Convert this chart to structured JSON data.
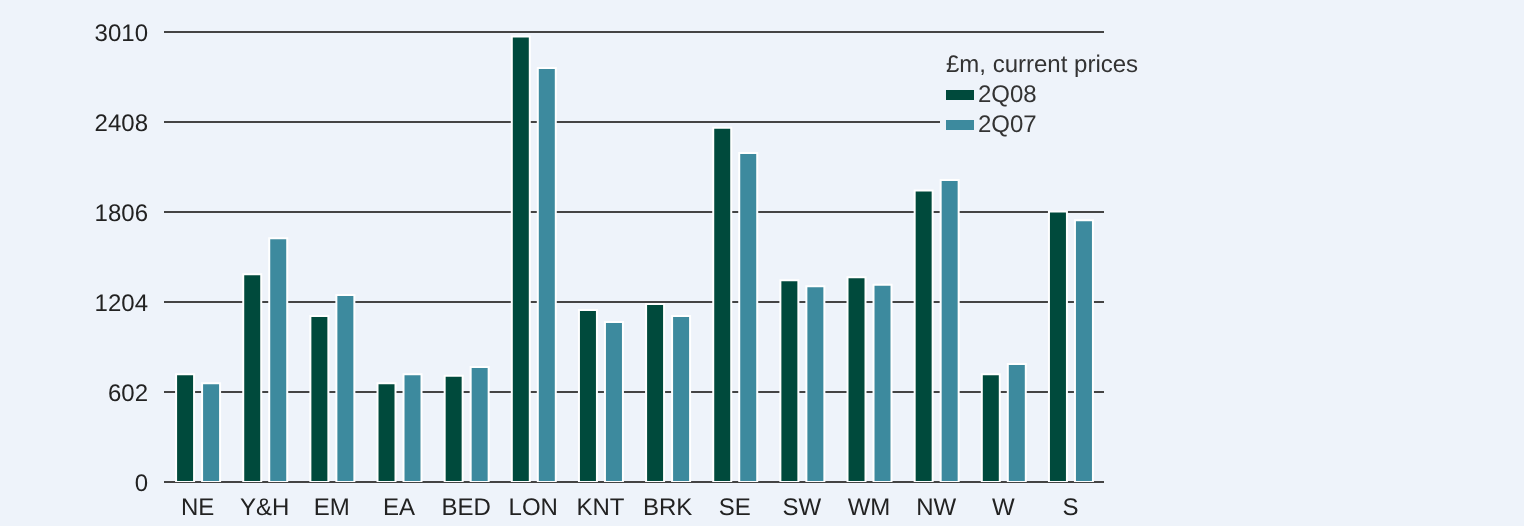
{
  "chart_data": {
    "type": "bar",
    "legend_title": "£m, current prices",
    "categories": [
      "NE",
      "Y&H",
      "EM",
      "EA",
      "BED",
      "LON",
      "KNT",
      "BRK",
      "SE",
      "SW",
      "WM",
      "NW",
      "W",
      "S"
    ],
    "series": [
      {
        "name": "2Q08",
        "color": "#004a3c",
        "values": [
          720,
          1390,
          1110,
          660,
          710,
          2980,
          1150,
          1190,
          2370,
          1350,
          1370,
          1950,
          720,
          1810
        ]
      },
      {
        "name": "2Q07",
        "color": "#3d8a9e",
        "values": [
          660,
          1630,
          1250,
          720,
          770,
          2770,
          1070,
          1110,
          2200,
          1310,
          1320,
          2020,
          790,
          1750
        ]
      }
    ],
    "ylim": [
      0,
      3010
    ],
    "yticks": [
      0,
      602,
      1204,
      1806,
      2408,
      3010
    ],
    "grid": "y",
    "legend": "top right"
  }
}
